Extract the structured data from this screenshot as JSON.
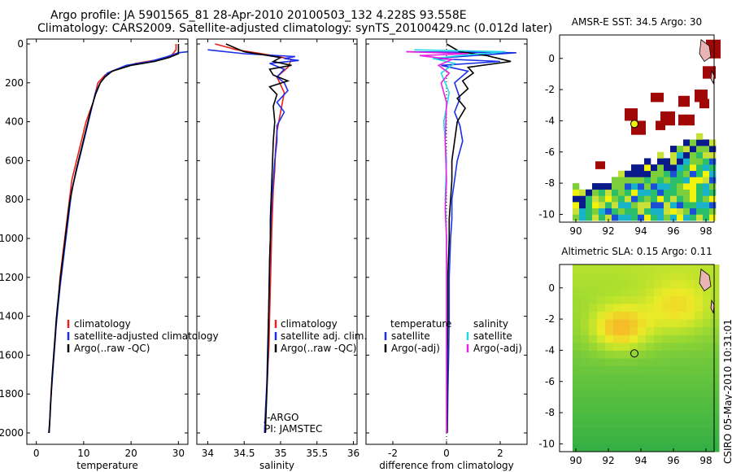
{
  "title": {
    "line1": "Argo profile: JA 5901565_81 28-Apr-2010 20100503_132 4.228S 93.558E",
    "line2": "Climatology: CARS2009. Satellite-adjusted climatology: synTS_20100429.nc (0.012d later)"
  },
  "credit": "CSIRO 05-May-2010 10:31:01",
  "colors": {
    "clim": "#e8221b",
    "sat": "#1b2fe8",
    "argo": "#000000",
    "sal_sat": "#22d7e8",
    "sal_argo": "#e822e0",
    "marker": "#f2f20a"
  },
  "chart_data": [
    {
      "type": "line",
      "name": "temperature",
      "xlabel": "temperature",
      "ylabel": "",
      "xlim": [
        -2,
        32
      ],
      "ylim": [
        2050,
        0
      ],
      "xticks": [
        0,
        10,
        20,
        30
      ],
      "yticks": [
        0,
        200,
        400,
        600,
        800,
        1000,
        1200,
        1400,
        1600,
        1800,
        2000
      ],
      "legend": [
        "climatology",
        "satellite-adjusted climatology",
        "Argo(..raw -QC)"
      ],
      "series": [
        {
          "name": "climatology",
          "color": "clim",
          "points": [
            [
              29.5,
              0
            ],
            [
              29.5,
              30
            ],
            [
              28.5,
              60
            ],
            [
              26,
              80
            ],
            [
              21,
              100
            ],
            [
              17,
              130
            ],
            [
              14.5,
              160
            ],
            [
              13,
              200
            ],
            [
              12,
              300
            ],
            [
              10.5,
              400
            ],
            [
              9.5,
              500
            ],
            [
              8.5,
              600
            ],
            [
              7.5,
              700
            ],
            [
              7,
              800
            ],
            [
              6.5,
              900
            ],
            [
              6,
              1000
            ],
            [
              5.5,
              1100
            ],
            [
              5,
              1200
            ],
            [
              4.7,
              1300
            ],
            [
              4.3,
              1400
            ],
            [
              4,
              1500
            ],
            [
              3.7,
              1600
            ],
            [
              3.4,
              1700
            ],
            [
              3.1,
              1800
            ],
            [
              2.9,
              1900
            ],
            [
              2.7,
              2000
            ]
          ]
        },
        {
          "name": "satellite-adjusted climatology",
          "color": "sat",
          "points": [
            [
              32,
              40
            ],
            [
              30,
              45
            ],
            [
              27,
              70
            ],
            [
              24,
              90
            ],
            [
              19,
              110
            ],
            [
              15,
              150
            ],
            [
              13.5,
              200
            ],
            [
              12.5,
              250
            ],
            [
              11.5,
              350
            ],
            [
              10.5,
              450
            ],
            [
              9.5,
              550
            ],
            [
              8.5,
              650
            ],
            [
              7.5,
              750
            ],
            [
              7,
              850
            ],
            [
              6.5,
              950
            ],
            [
              6,
              1050
            ],
            [
              5.5,
              1150
            ],
            [
              5,
              1250
            ],
            [
              4.6,
              1350
            ],
            [
              4.2,
              1450
            ],
            [
              3.9,
              1550
            ],
            [
              3.6,
              1650
            ],
            [
              3.3,
              1750
            ],
            [
              3,
              1850
            ],
            [
              2.8,
              1950
            ],
            [
              2.6,
              2000
            ]
          ]
        },
        {
          "name": "Argo(..raw -QC)",
          "color": "argo",
          "points": [
            [
              30,
              0
            ],
            [
              30,
              50
            ],
            [
              28,
              70
            ],
            [
              25,
              90
            ],
            [
              20,
              110
            ],
            [
              16,
              140
            ],
            [
              14.5,
              170
            ],
            [
              13.5,
              200
            ],
            [
              12.5,
              260
            ],
            [
              11.5,
              340
            ],
            [
              10.5,
              440
            ],
            [
              9.5,
              540
            ],
            [
              8.5,
              640
            ],
            [
              7.8,
              720
            ],
            [
              7,
              820
            ],
            [
              6.5,
              920
            ],
            [
              6,
              1020
            ],
            [
              5.5,
              1120
            ],
            [
              5,
              1220
            ],
            [
              4.6,
              1320
            ],
            [
              4.2,
              1420
            ],
            [
              3.9,
              1520
            ],
            [
              3.6,
              1620
            ],
            [
              3.3,
              1720
            ],
            [
              3.1,
              1820
            ],
            [
              2.9,
              1920
            ],
            [
              2.7,
              2000
            ]
          ]
        }
      ]
    },
    {
      "type": "line",
      "name": "salinity",
      "xlabel": "salinity",
      "ylabel": "",
      "xlim": [
        33.85,
        36.05
      ],
      "ylim": [
        2050,
        0
      ],
      "xticks": [
        34,
        34.5,
        35,
        35.5,
        36
      ],
      "legend": [
        "climatology",
        "satellite adj. clim.",
        "Argo(..raw -QC)"
      ],
      "annotations": [
        "J-ARGO",
        "PI: JAMSTEC"
      ],
      "series": [
        {
          "name": "climatology",
          "color": "clim",
          "points": [
            [
              34.1,
              0
            ],
            [
              34.4,
              30
            ],
            [
              34.9,
              60
            ],
            [
              35.15,
              80
            ],
            [
              35.1,
              120
            ],
            [
              34.95,
              170
            ],
            [
              35.05,
              250
            ],
            [
              35,
              350
            ],
            [
              34.95,
              450
            ],
            [
              34.93,
              550
            ],
            [
              34.92,
              650
            ],
            [
              34.9,
              750
            ],
            [
              34.89,
              850
            ],
            [
              34.88,
              950
            ],
            [
              34.87,
              1100
            ],
            [
              34.86,
              1250
            ],
            [
              34.85,
              1400
            ],
            [
              34.84,
              1550
            ],
            [
              34.82,
              1700
            ],
            [
              34.8,
              1850
            ],
            [
              34.78,
              2000
            ]
          ]
        },
        {
          "name": "satellite adj. clim.",
          "color": "sat",
          "points": [
            [
              34,
              30
            ],
            [
              34.5,
              50
            ],
            [
              35.2,
              65
            ],
            [
              35.05,
              75
            ],
            [
              35.25,
              85
            ],
            [
              34.85,
              100
            ],
            [
              35.05,
              130
            ],
            [
              34.95,
              170
            ],
            [
              35.05,
              200
            ],
            [
              35.1,
              240
            ],
            [
              34.95,
              300
            ],
            [
              35.05,
              350
            ],
            [
              34.95,
              420
            ],
            [
              34.95,
              500
            ],
            [
              34.92,
              600
            ],
            [
              34.9,
              700
            ],
            [
              34.88,
              800
            ],
            [
              34.87,
              900
            ],
            [
              34.86,
              1000
            ],
            [
              34.85,
              1150
            ],
            [
              34.84,
              1300
            ],
            [
              34.83,
              1450
            ],
            [
              34.82,
              1600
            ],
            [
              34.81,
              1750
            ],
            [
              34.79,
              1900
            ],
            [
              34.78,
              2000
            ]
          ]
        },
        {
          "name": "Argo(..raw -QC)",
          "color": "argo",
          "points": [
            [
              34.25,
              0
            ],
            [
              34.5,
              40
            ],
            [
              35,
              70
            ],
            [
              34.9,
              90
            ],
            [
              35.15,
              110
            ],
            [
              34.85,
              130
            ],
            [
              34.9,
              160
            ],
            [
              35.1,
              190
            ],
            [
              34.85,
              220
            ],
            [
              34.95,
              260
            ],
            [
              34.9,
              320
            ],
            [
              34.92,
              400
            ],
            [
              34.9,
              500
            ],
            [
              34.89,
              600
            ],
            [
              34.88,
              700
            ],
            [
              34.87,
              800
            ],
            [
              34.86,
              900
            ],
            [
              34.86,
              1000
            ],
            [
              34.85,
              1100
            ],
            [
              34.84,
              1300
            ],
            [
              34.83,
              1500
            ],
            [
              34.82,
              1700
            ],
            [
              34.8,
              1900
            ],
            [
              34.79,
              2000
            ]
          ]
        }
      ]
    },
    {
      "type": "line",
      "name": "difference",
      "xlabel": "difference from climatology",
      "ylabel": "",
      "xlim": [
        -3,
        3
      ],
      "ylim": [
        2050,
        0
      ],
      "xticks": [
        -2,
        0,
        2
      ],
      "legend_groups": {
        "temperature": "temperature",
        "salinity": "salinity"
      },
      "legend": [
        "satellite",
        "Argo(-adj)",
        "satellite",
        "Argo(-adj)"
      ],
      "series": [
        {
          "name": "temperature satellite",
          "color": "sat",
          "points": [
            [
              -1.5,
              40
            ],
            [
              2.6,
              45
            ],
            [
              1,
              60
            ],
            [
              -0.5,
              75
            ],
            [
              2,
              90
            ],
            [
              -0.2,
              110
            ],
            [
              0.8,
              140
            ],
            [
              0.3,
              200
            ],
            [
              0.5,
              280
            ],
            [
              0.3,
              350
            ],
            [
              0.5,
              420
            ],
            [
              0.6,
              500
            ],
            [
              0.4,
              600
            ],
            [
              0.3,
              700
            ],
            [
              0.2,
              800
            ],
            [
              0.2,
              900
            ],
            [
              0.15,
              1000
            ],
            [
              0.1,
              1200
            ],
            [
              0.1,
              1400
            ],
            [
              0.08,
              1600
            ],
            [
              0.05,
              1800
            ],
            [
              0.03,
              2000
            ]
          ]
        },
        {
          "name": "temperature Argo(-adj)",
          "color": "argo",
          "points": [
            [
              0,
              0
            ],
            [
              0.5,
              40
            ],
            [
              1.5,
              60
            ],
            [
              2.4,
              90
            ],
            [
              0.8,
              120
            ],
            [
              1,
              150
            ],
            [
              0.6,
              190
            ],
            [
              0.8,
              230
            ],
            [
              0.4,
              280
            ],
            [
              0.7,
              330
            ],
            [
              0.4,
              400
            ],
            [
              0.3,
              500
            ],
            [
              0.2,
              600
            ],
            [
              0.2,
              700
            ],
            [
              0.15,
              800
            ],
            [
              0.1,
              900
            ],
            [
              0.1,
              1000
            ],
            [
              0.05,
              1200
            ],
            [
              0.05,
              1400
            ],
            [
              0.03,
              1600
            ],
            [
              0.03,
              1800
            ],
            [
              0.02,
              2000
            ]
          ]
        },
        {
          "name": "salinity satellite",
          "color": "sal_sat",
          "points": [
            [
              -1.2,
              30
            ],
            [
              2.2,
              40
            ],
            [
              0.5,
              60
            ],
            [
              -0.5,
              75
            ],
            [
              0.3,
              100
            ],
            [
              -0.2,
              150
            ],
            [
              0.1,
              250
            ],
            [
              -0.1,
              400
            ],
            [
              0,
              600
            ],
            [
              -0.05,
              800
            ],
            [
              0,
              1000
            ],
            [
              0,
              1200
            ],
            [
              0,
              1400
            ],
            [
              0,
              1600
            ],
            [
              0,
              1800
            ],
            [
              0,
              2000
            ]
          ]
        },
        {
          "name": "salinity Argo(-adj)",
          "color": "sal_argo",
          "points": [
            [
              -1.5,
              40
            ],
            [
              0.8,
              50
            ],
            [
              -1,
              60
            ],
            [
              0.2,
              80
            ],
            [
              -0.3,
              110
            ],
            [
              0.1,
              150
            ],
            [
              -0.2,
              200
            ],
            [
              0,
              300
            ],
            [
              -0.05,
              500
            ],
            [
              0,
              700
            ],
            [
              -0.05,
              850
            ],
            [
              0,
              1000
            ],
            [
              0,
              1200
            ],
            [
              0,
              1400
            ],
            [
              0,
              1600
            ],
            [
              0,
              1800
            ],
            [
              0,
              2000
            ]
          ]
        }
      ]
    },
    {
      "type": "heatmap",
      "name": "AMSR-E SST map",
      "title": "AMSR-E SST: 34.5 Argo: 30",
      "xlim": [
        89,
        98.5
      ],
      "ylim": [
        -10.5,
        1.5
      ],
      "xticks": [
        90,
        92,
        94,
        96,
        98
      ],
      "yticks": [
        -10,
        -8,
        -6,
        -4,
        -2,
        0
      ],
      "argo_position": [
        93.6,
        -4.2
      ]
    },
    {
      "type": "heatmap",
      "name": "Altimetric SLA map",
      "title": "Altimetric SLA: 0.15 Argo: 0.11",
      "xlim": [
        89,
        98.5
      ],
      "ylim": [
        -10.5,
        1.5
      ],
      "xticks": [
        90,
        92,
        94,
        96,
        98
      ],
      "yticks": [
        -10,
        -8,
        -6,
        -4,
        -2,
        0
      ],
      "argo_position": [
        93.6,
        -4.2
      ]
    }
  ]
}
